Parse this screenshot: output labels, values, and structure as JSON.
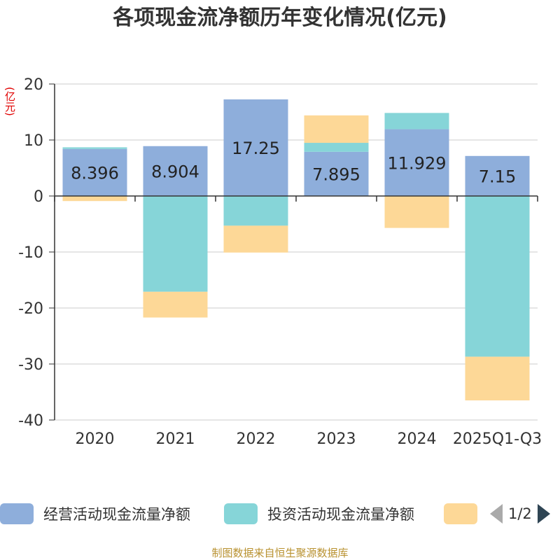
{
  "chart_data": {
    "type": "bar",
    "stacked": true,
    "title": "各项现金流净额历年变化情况(亿元)",
    "ylabel": "(亿元)",
    "xlabel": "",
    "ylim": [
      -40,
      20
    ],
    "yticks": [
      20,
      10,
      0,
      -10,
      -20,
      -30,
      -40
    ],
    "categories": [
      "2020",
      "2021",
      "2022",
      "2023",
      "2024",
      "2025Q1-Q3"
    ],
    "series": [
      {
        "name": "经营活动现金流量净额",
        "color": "#8eaedb",
        "values": [
          8.396,
          8.904,
          17.25,
          7.895,
          11.929,
          7.15
        ],
        "show_labels": true
      },
      {
        "name": "投资活动现金流量净额",
        "color": "#86d5d8",
        "values": [
          0.3,
          -17.1,
          -5.3,
          1.6,
          2.9,
          -28.7
        ],
        "show_labels": false
      },
      {
        "name": "",
        "color": "#fdd897",
        "values": [
          -0.9,
          -4.6,
          -4.8,
          4.9,
          -5.7,
          -7.8
        ],
        "show_labels": false
      }
    ],
    "legend_position": "bottom",
    "grid": true
  },
  "legend": {
    "page": "1/2"
  },
  "source": "制图数据来自恒生聚源数据库"
}
